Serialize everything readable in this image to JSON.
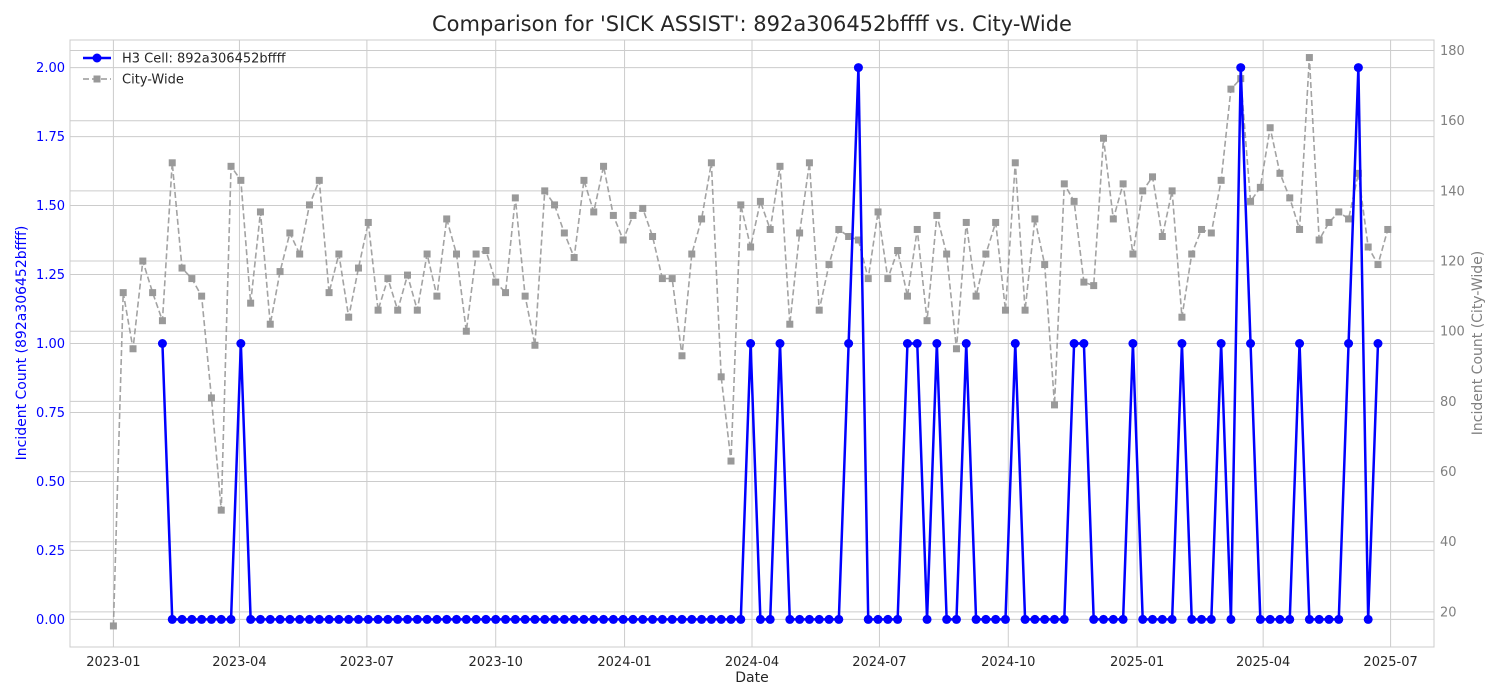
{
  "chart_data": {
    "type": "line",
    "title": "Comparison for 'SICK ASSIST': 892a306452bffff vs. City-Wide",
    "xlabel": "Date",
    "ylabel_left": "Incident Count (892a306452bffff)",
    "ylabel_right": "Incident Count (City-Wide)",
    "ylim_left": [
      -0.1,
      2.1
    ],
    "ylim_right": [
      10,
      183
    ],
    "y_ticks_left": [
      "0.00",
      "0.25",
      "0.50",
      "0.75",
      "1.00",
      "1.25",
      "1.50",
      "1.75",
      "2.00"
    ],
    "y_ticks_right": [
      "20",
      "40",
      "60",
      "80",
      "100",
      "120",
      "140",
      "160",
      "180"
    ],
    "x_range": [
      "2022-12-01",
      "2025-08-01"
    ],
    "x_ticks": [
      {
        "date": "2023-01-01",
        "label": "2023-01"
      },
      {
        "date": "2023-04-01",
        "label": "2023-04"
      },
      {
        "date": "2023-07-01",
        "label": "2023-07"
      },
      {
        "date": "2023-10-01",
        "label": "2023-10"
      },
      {
        "date": "2024-01-01",
        "label": "2024-01"
      },
      {
        "date": "2024-04-01",
        "label": "2024-04"
      },
      {
        "date": "2024-07-01",
        "label": "2024-07"
      },
      {
        "date": "2024-10-01",
        "label": "2024-10"
      },
      {
        "date": "2025-01-01",
        "label": "2025-01"
      },
      {
        "date": "2025-04-01",
        "label": "2025-04"
      },
      {
        "date": "2025-07-01",
        "label": "2025-07"
      }
    ],
    "grid": true,
    "legend_position": "top-left",
    "series": [
      {
        "name": "H3 Cell: 892a306452bffff",
        "axis": "left",
        "color": "#0000ff",
        "style": "solid",
        "marker": "circle",
        "x": [
          "2023-02-05",
          "2023-02-12",
          "2023-02-19",
          "2023-02-26",
          "2023-03-05",
          "2023-03-12",
          "2023-03-19",
          "2023-03-26",
          "2023-04-02",
          "2023-04-09",
          "2023-04-16",
          "2023-04-23",
          "2023-04-30",
          "2023-05-07",
          "2023-05-14",
          "2023-05-21",
          "2023-05-28",
          "2023-06-04",
          "2023-06-11",
          "2023-06-18",
          "2023-06-25",
          "2023-07-02",
          "2023-07-09",
          "2023-07-16",
          "2023-07-23",
          "2023-07-30",
          "2023-08-06",
          "2023-08-13",
          "2023-08-20",
          "2023-08-27",
          "2023-09-03",
          "2023-09-10",
          "2023-09-17",
          "2023-09-24",
          "2023-10-01",
          "2023-10-08",
          "2023-10-15",
          "2023-10-22",
          "2023-10-29",
          "2023-11-05",
          "2023-11-12",
          "2023-11-19",
          "2023-11-26",
          "2023-12-03",
          "2023-12-10",
          "2023-12-17",
          "2023-12-24",
          "2023-12-31",
          "2024-01-07",
          "2024-01-14",
          "2024-01-21",
          "2024-01-28",
          "2024-02-04",
          "2024-02-11",
          "2024-02-18",
          "2024-02-25",
          "2024-03-03",
          "2024-03-10",
          "2024-03-17",
          "2024-03-24",
          "2024-03-31",
          "2024-04-07",
          "2024-04-14",
          "2024-04-21",
          "2024-04-28",
          "2024-05-05",
          "2024-05-12",
          "2024-05-19",
          "2024-05-26",
          "2024-06-02",
          "2024-06-09",
          "2024-06-16",
          "2024-06-23",
          "2024-06-30",
          "2024-07-07",
          "2024-07-14",
          "2024-07-21",
          "2024-07-28",
          "2024-08-04",
          "2024-08-11",
          "2024-08-18",
          "2024-08-25",
          "2024-09-01",
          "2024-09-08",
          "2024-09-15",
          "2024-09-22",
          "2024-09-29",
          "2024-10-06",
          "2024-10-13",
          "2024-10-20",
          "2024-10-27",
          "2024-11-03",
          "2024-11-10",
          "2024-11-17",
          "2024-11-24",
          "2024-12-01",
          "2024-12-08",
          "2024-12-15",
          "2024-12-22",
          "2024-12-29",
          "2025-01-05",
          "2025-01-12",
          "2025-01-19",
          "2025-01-26",
          "2025-02-02",
          "2025-02-09",
          "2025-02-16",
          "2025-02-23",
          "2025-03-02",
          "2025-03-09",
          "2025-03-16",
          "2025-03-23",
          "2025-03-30",
          "2025-04-06",
          "2025-04-13",
          "2025-04-20",
          "2025-04-27",
          "2025-05-04",
          "2025-05-11",
          "2025-05-18",
          "2025-05-25",
          "2025-06-01",
          "2025-06-08",
          "2025-06-15",
          "2025-06-22"
        ],
        "values": [
          1,
          0,
          0,
          0,
          0,
          0,
          0,
          0,
          1,
          0,
          0,
          0,
          0,
          0,
          0,
          0,
          0,
          0,
          0,
          0,
          0,
          0,
          0,
          0,
          0,
          0,
          0,
          0,
          0,
          0,
          0,
          0,
          0,
          0,
          0,
          0,
          0,
          0,
          0,
          0,
          0,
          0,
          0,
          0,
          0,
          0,
          0,
          0,
          0,
          0,
          0,
          0,
          0,
          0,
          0,
          0,
          0,
          0,
          0,
          0,
          1,
          0,
          0,
          1,
          0,
          0,
          0,
          0,
          0,
          0,
          1,
          2,
          0,
          0,
          0,
          0,
          1,
          1,
          0,
          1,
          0,
          0,
          1,
          0,
          0,
          0,
          0,
          1,
          0,
          0,
          0,
          0,
          0,
          1,
          1,
          0,
          0,
          0,
          0,
          1,
          0,
          0,
          0,
          0,
          1,
          0,
          0,
          0,
          1,
          0,
          2,
          1,
          0,
          0,
          0,
          0,
          1,
          0,
          0,
          0,
          0,
          1,
          2,
          0,
          1
        ]
      },
      {
        "name": "City-Wide",
        "axis": "right",
        "color": "#999999",
        "style": "dashed",
        "marker": "square",
        "x": [
          "2023-01-01",
          "2023-01-08",
          "2023-01-15",
          "2023-01-22",
          "2023-01-29",
          "2023-02-05",
          "2023-02-12",
          "2023-02-19",
          "2023-02-26",
          "2023-03-05",
          "2023-03-12",
          "2023-03-19",
          "2023-03-26",
          "2023-04-02",
          "2023-04-09",
          "2023-04-16",
          "2023-04-23",
          "2023-04-30",
          "2023-05-07",
          "2023-05-14",
          "2023-05-21",
          "2023-05-28",
          "2023-06-04",
          "2023-06-11",
          "2023-06-18",
          "2023-06-25",
          "2023-07-02",
          "2023-07-09",
          "2023-07-16",
          "2023-07-23",
          "2023-07-30",
          "2023-08-06",
          "2023-08-13",
          "2023-08-20",
          "2023-08-27",
          "2023-09-03",
          "2023-09-10",
          "2023-09-17",
          "2023-09-24",
          "2023-10-01",
          "2023-10-08",
          "2023-10-15",
          "2023-10-22",
          "2023-10-29",
          "2023-11-05",
          "2023-11-12",
          "2023-11-19",
          "2023-11-26",
          "2023-12-03",
          "2023-12-10",
          "2023-12-17",
          "2023-12-24",
          "2023-12-31",
          "2024-01-07",
          "2024-01-14",
          "2024-01-21",
          "2024-01-28",
          "2024-02-04",
          "2024-02-11",
          "2024-02-18",
          "2024-02-25",
          "2024-03-03",
          "2024-03-10",
          "2024-03-17",
          "2024-03-24",
          "2024-03-31",
          "2024-04-07",
          "2024-04-14",
          "2024-04-21",
          "2024-04-28",
          "2024-05-05",
          "2024-05-12",
          "2024-05-19",
          "2024-05-26",
          "2024-06-02",
          "2024-06-09",
          "2024-06-16",
          "2024-06-23",
          "2024-06-30",
          "2024-07-07",
          "2024-07-14",
          "2024-07-21",
          "2024-07-28",
          "2024-08-04",
          "2024-08-11",
          "2024-08-18",
          "2024-08-25",
          "2024-09-01",
          "2024-09-08",
          "2024-09-15",
          "2024-09-22",
          "2024-09-29",
          "2024-10-06",
          "2024-10-13",
          "2024-10-20",
          "2024-10-27",
          "2024-11-03",
          "2024-11-10",
          "2024-11-17",
          "2024-11-24",
          "2024-12-01",
          "2024-12-08",
          "2024-12-15",
          "2024-12-22",
          "2024-12-29",
          "2025-01-05",
          "2025-01-12",
          "2025-01-19",
          "2025-01-26",
          "2025-02-02",
          "2025-02-09",
          "2025-02-16",
          "2025-02-23",
          "2025-03-02",
          "2025-03-09",
          "2025-03-16",
          "2025-03-23",
          "2025-03-30",
          "2025-04-06",
          "2025-04-13",
          "2025-04-20",
          "2025-04-27",
          "2025-05-04",
          "2025-05-11",
          "2025-05-18",
          "2025-05-25",
          "2025-06-01",
          "2025-06-08",
          "2025-06-15",
          "2025-06-22",
          "2025-06-29"
        ],
        "values": [
          16,
          111,
          95,
          120,
          111,
          103,
          148,
          118,
          115,
          110,
          81,
          49,
          147,
          143,
          108,
          134,
          102,
          117,
          128,
          122,
          136,
          143,
          111,
          122,
          104,
          118,
          131,
          106,
          115,
          106,
          116,
          106,
          122,
          110,
          132,
          122,
          100,
          122,
          123,
          114,
          111,
          138,
          110,
          96,
          140,
          136,
          128,
          121,
          143,
          134,
          147,
          133,
          126,
          133,
          135,
          127,
          115,
          115,
          93,
          122,
          132,
          148,
          87,
          63,
          136,
          124,
          137,
          129,
          147,
          102,
          128,
          148,
          106,
          119,
          129,
          127,
          126,
          115,
          134,
          115,
          123,
          110,
          129,
          103,
          133,
          122,
          95,
          131,
          110,
          122,
          131,
          106,
          148,
          106,
          132,
          119,
          79,
          142,
          137,
          114,
          113,
          155,
          132,
          142,
          122,
          140,
          144,
          127,
          140,
          104,
          122,
          129,
          128,
          143,
          169,
          172,
          137,
          141,
          158,
          145,
          138,
          129,
          178,
          126,
          131,
          134,
          132,
          145,
          124,
          119,
          129
        ]
      }
    ]
  }
}
